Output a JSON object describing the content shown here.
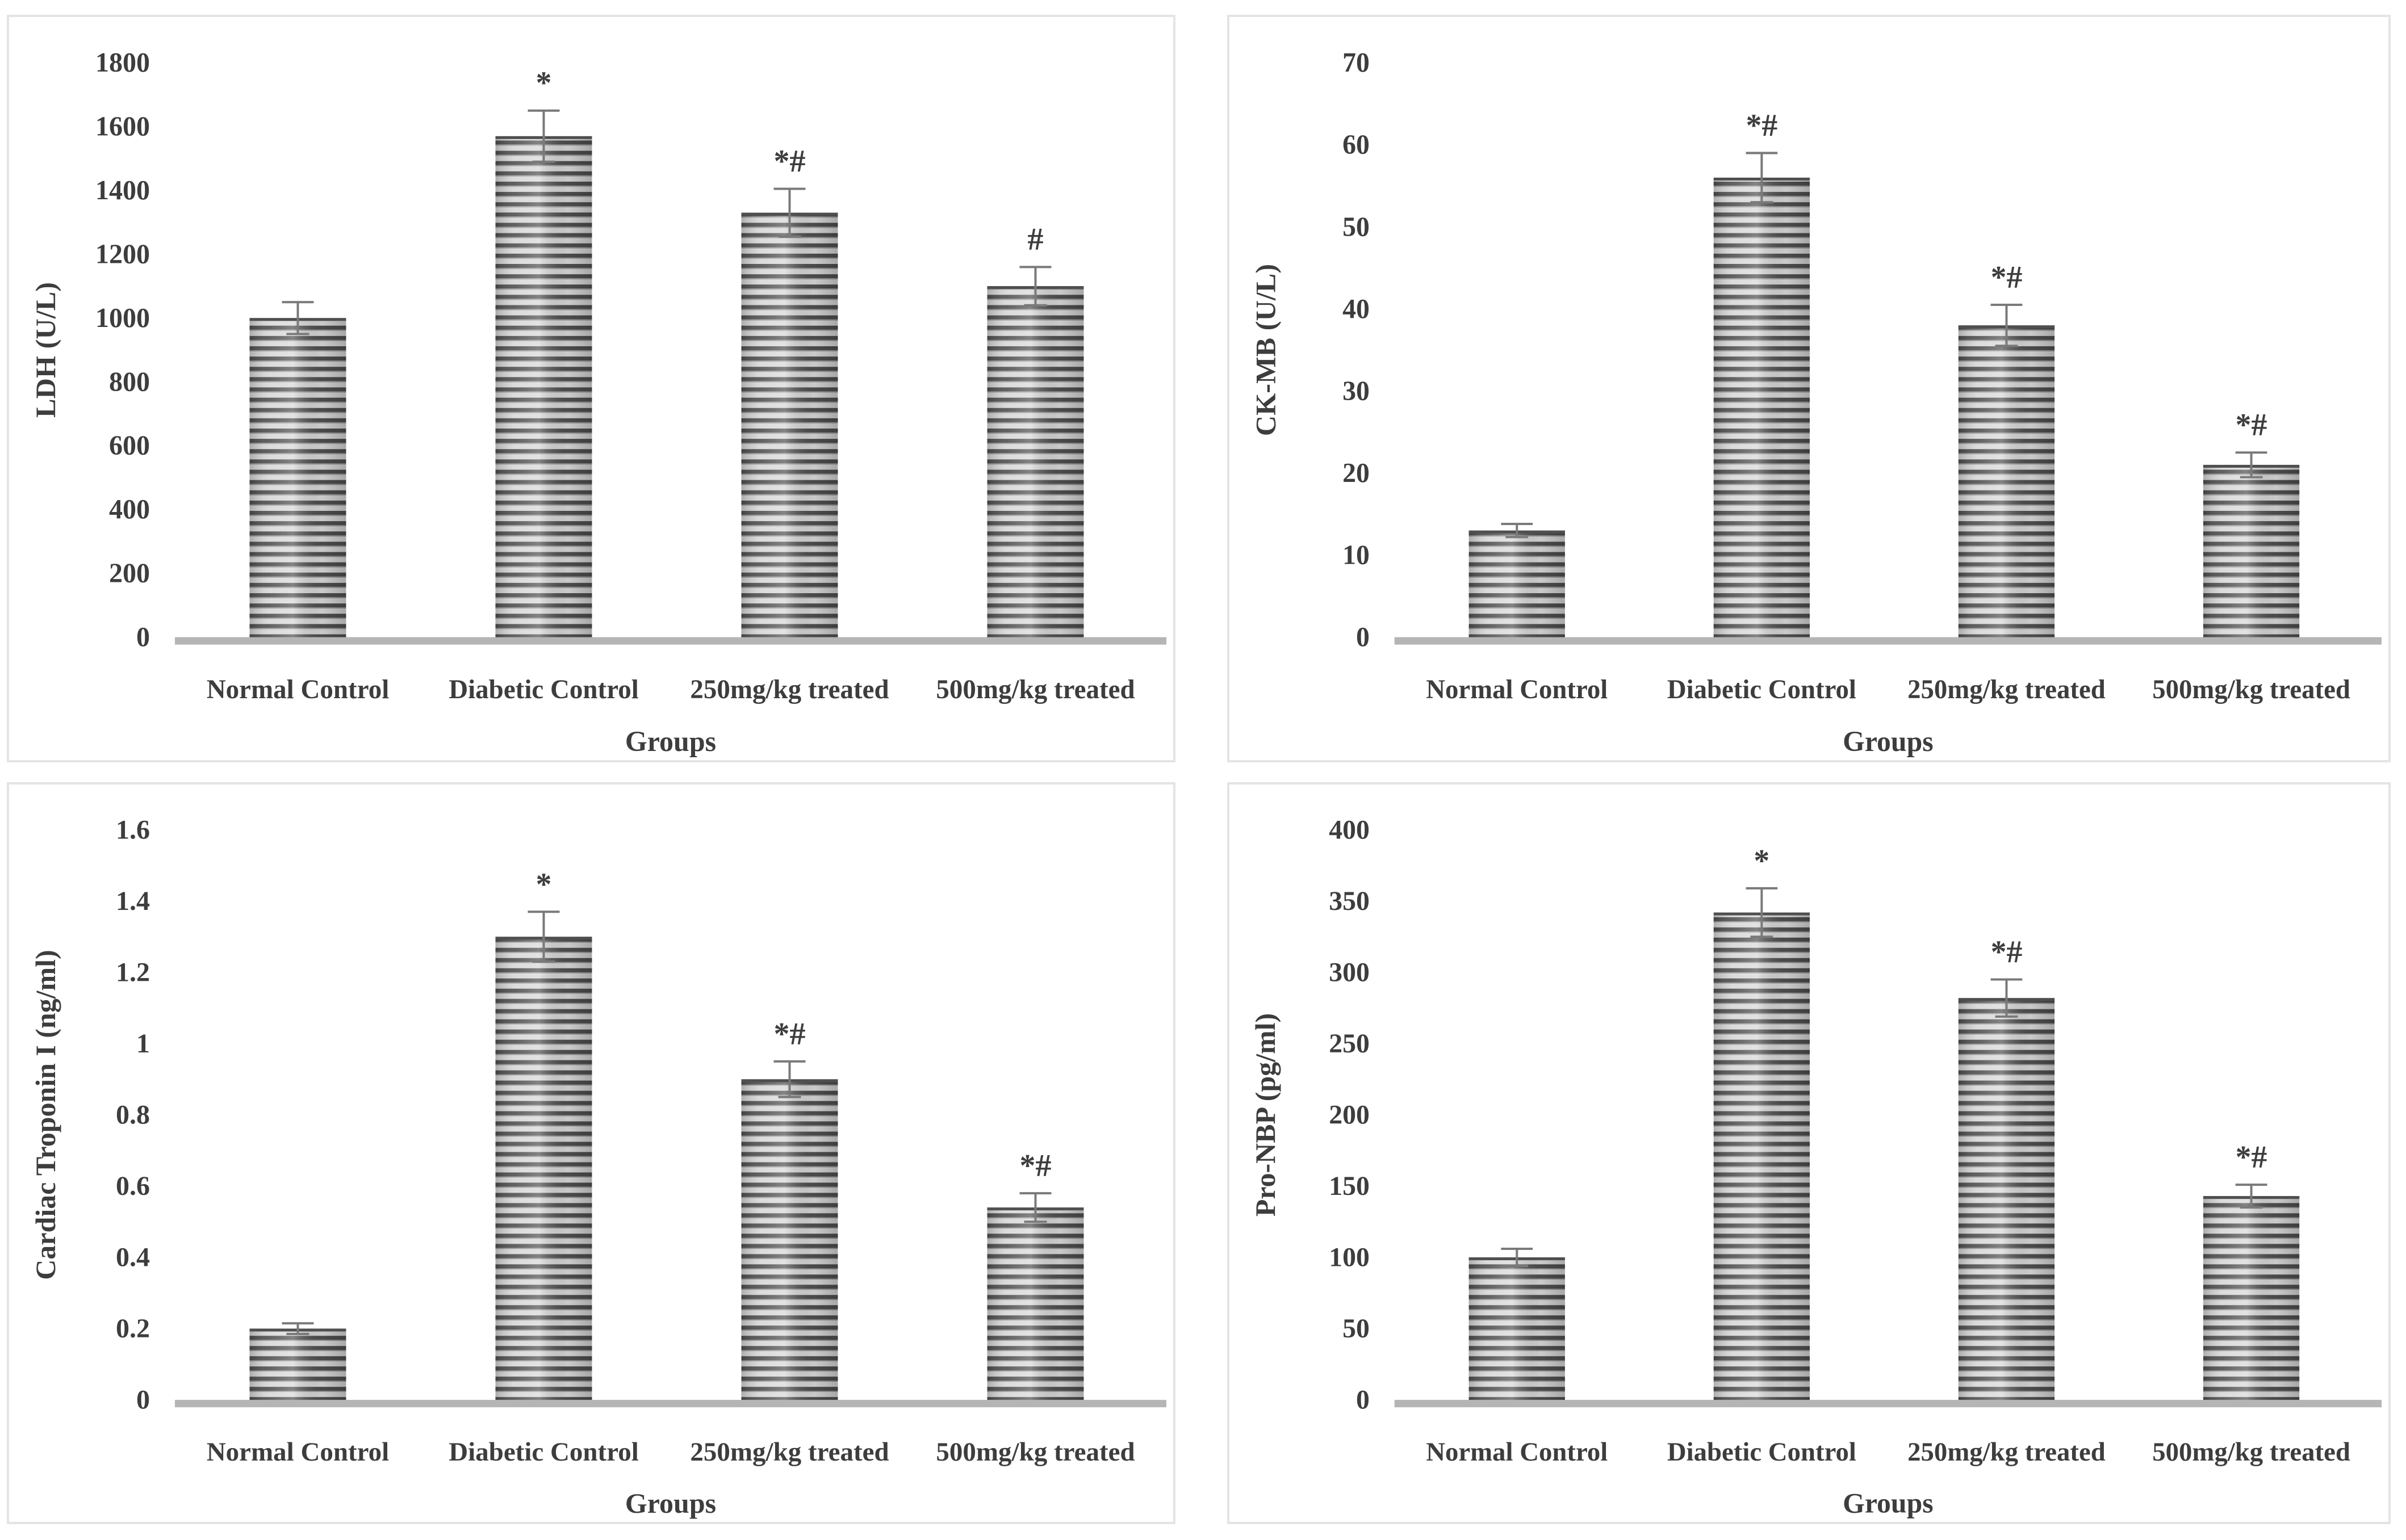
{
  "figure": {
    "description": "Four-panel bar chart figure of cardiac biomarkers across treatment groups",
    "shared_x_axis_label": "Groups",
    "shared_categories": [
      "Normal Control",
      "Diabetic Control",
      "250mg/kg treated",
      "500mg/kg treated"
    ]
  },
  "style": {
    "background": "#ffffff",
    "panel_border_color": "#e4e4e4",
    "text_color": "#3d3d3d",
    "axis_line_color": "#b5b5b5",
    "error_bar_color": "#7a7a7a",
    "bar_stripe_dark": "#4f4f4f",
    "bar_stripe_light": "#d7d7d7"
  },
  "chart_data": [
    {
      "id": "ldh",
      "type": "bar",
      "title": "",
      "xlabel": "Groups",
      "ylabel": "LDH (U/L)",
      "categories": [
        "Normal Control",
        "Diabetic Control",
        "250mg/kg treated",
        "500mg/kg treated"
      ],
      "values": [
        1000,
        1570,
        1330,
        1100
      ],
      "error_bars": [
        50,
        80,
        75,
        60
      ],
      "significance_markers": [
        "",
        "*",
        "*#",
        "#"
      ],
      "ylim": [
        0,
        1800
      ],
      "yticks": [
        0,
        200,
        400,
        600,
        800,
        1000,
        1200,
        1400,
        1600,
        1800
      ],
      "grid": false,
      "legend": false
    },
    {
      "id": "ck-mb",
      "type": "bar",
      "title": "",
      "xlabel": "Groups",
      "ylabel": "CK-MB (U/L)",
      "categories": [
        "Normal Control",
        "Diabetic Control",
        "250mg/kg treated",
        "500mg/kg treated"
      ],
      "values": [
        13,
        56,
        38,
        21
      ],
      "error_bars": [
        0.8,
        3,
        2.5,
        1.5
      ],
      "significance_markers": [
        "",
        "*#",
        "*#",
        "*#"
      ],
      "ylim": [
        0,
        70
      ],
      "yticks": [
        0,
        10,
        20,
        30,
        40,
        50,
        60,
        70
      ],
      "grid": false,
      "legend": false
    },
    {
      "id": "cardiac-troponin-i",
      "type": "bar",
      "title": "",
      "xlabel": "Groups",
      "ylabel": "Cardiac Troponin I (ng/ml)",
      "categories": [
        "Normal Control",
        "Diabetic Control",
        "250mg/kg treated",
        "500mg/kg treated"
      ],
      "values": [
        0.2,
        1.3,
        0.9,
        0.54
      ],
      "error_bars": [
        0.015,
        0.07,
        0.05,
        0.04
      ],
      "significance_markers": [
        "",
        "*",
        "*#",
        "*#"
      ],
      "ylim": [
        0,
        1.6
      ],
      "yticks": [
        0,
        0.2,
        0.4,
        0.6,
        0.8,
        1,
        1.2,
        1.4,
        1.6
      ],
      "grid": false,
      "legend": false
    },
    {
      "id": "pro-nbp",
      "type": "bar",
      "title": "",
      "xlabel": "Groups",
      "ylabel": "Pro-NBP (pg/ml)",
      "categories": [
        "Normal Control",
        "Diabetic Control",
        "250mg/kg treated",
        "500mg/kg treated"
      ],
      "values": [
        100,
        342,
        282,
        143
      ],
      "error_bars": [
        6,
        17,
        13,
        8
      ],
      "significance_markers": [
        "",
        "*",
        "*#",
        "*#"
      ],
      "ylim": [
        0,
        400
      ],
      "yticks": [
        0,
        50,
        100,
        150,
        200,
        250,
        300,
        350,
        400
      ],
      "grid": false,
      "legend": false
    }
  ]
}
